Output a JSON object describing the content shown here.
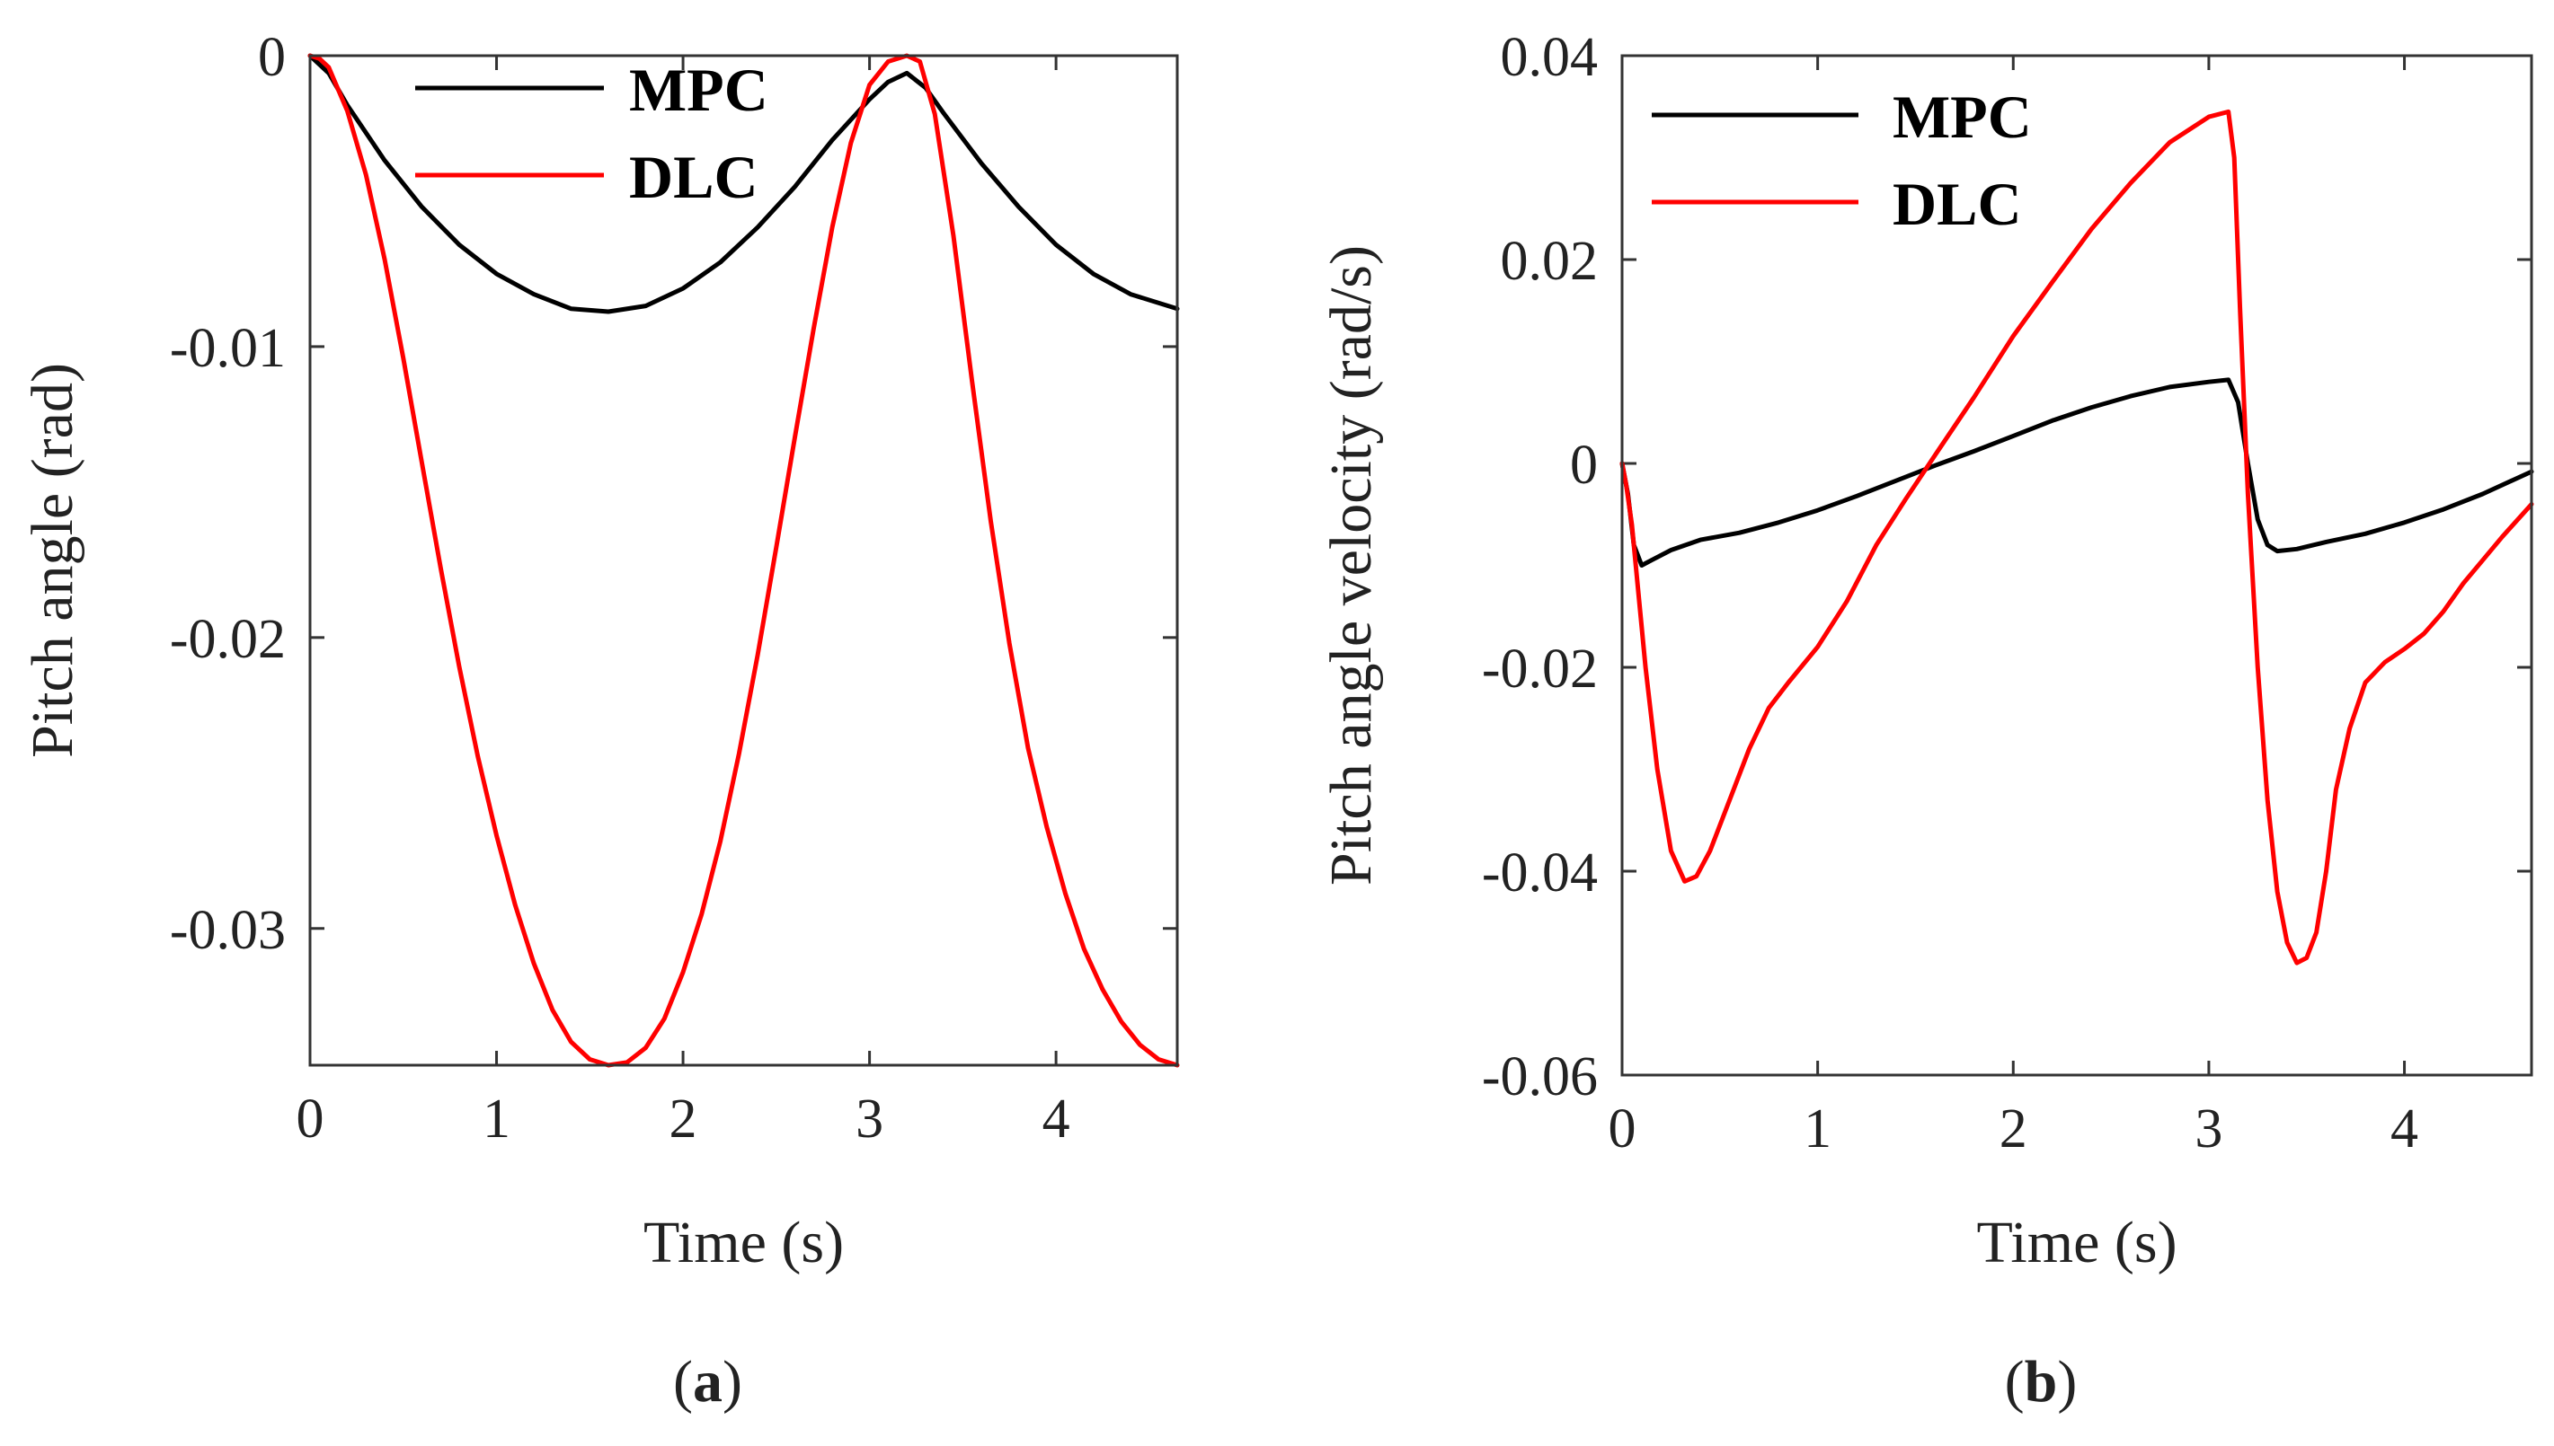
{
  "chart_data": [
    {
      "type": "line",
      "panel": "a",
      "caption": {
        "open": "(",
        "letter": "a",
        "close": ")"
      },
      "xlabel": "Time (s)",
      "ylabel": "Pitch angle (rad)",
      "xlim": [
        0,
        4.65
      ],
      "ylim": [
        -0.0347,
        0
      ],
      "xticks": [
        0,
        1,
        2,
        3,
        4
      ],
      "xtick_labels": [
        "0",
        "1",
        "2",
        "3",
        "4"
      ],
      "yticks": [
        0,
        -0.01,
        -0.02,
        -0.03
      ],
      "ytick_labels": [
        "0",
        "-0.01",
        "-0.02",
        "-0.03"
      ],
      "legend_position": "top",
      "series": [
        {
          "name": "MPC",
          "color": "#000000",
          "x": [
            0,
            0.1,
            0.2,
            0.4,
            0.6,
            0.8,
            1.0,
            1.2,
            1.4,
            1.6,
            1.8,
            2.0,
            2.2,
            2.4,
            2.6,
            2.8,
            3.0,
            3.1,
            3.2,
            3.3,
            3.4,
            3.6,
            3.8,
            4.0,
            4.2,
            4.4,
            4.65
          ],
          "y": [
            0,
            -0.0006,
            -0.0017,
            -0.0036,
            -0.0052,
            -0.0065,
            -0.0075,
            -0.0082,
            -0.0087,
            -0.0088,
            -0.0086,
            -0.008,
            -0.0071,
            -0.0059,
            -0.0045,
            -0.0029,
            -0.0015,
            -0.0009,
            -0.0006,
            -0.0011,
            -0.002,
            -0.0037,
            -0.0052,
            -0.0065,
            -0.0075,
            -0.0082,
            -0.0087
          ]
        },
        {
          "name": "DLC",
          "color": "#ff0000",
          "x": [
            0,
            0.05,
            0.1,
            0.2,
            0.3,
            0.4,
            0.5,
            0.6,
            0.7,
            0.8,
            0.9,
            1.0,
            1.1,
            1.2,
            1.3,
            1.4,
            1.5,
            1.6,
            1.7,
            1.8,
            1.9,
            2.0,
            2.1,
            2.2,
            2.3,
            2.4,
            2.5,
            2.6,
            2.7,
            2.8,
            2.9,
            3.0,
            3.1,
            3.2,
            3.27,
            3.35,
            3.45,
            3.55,
            3.65,
            3.75,
            3.85,
            3.95,
            4.05,
            4.15,
            4.25,
            4.35,
            4.45,
            4.55,
            4.65
          ],
          "y": [
            0,
            -0.0001,
            -0.0004,
            -0.0019,
            -0.0041,
            -0.007,
            -0.0104,
            -0.014,
            -0.0176,
            -0.021,
            -0.0241,
            -0.0268,
            -0.0292,
            -0.0312,
            -0.0328,
            -0.0339,
            -0.0345,
            -0.0347,
            -0.0346,
            -0.0341,
            -0.0331,
            -0.0315,
            -0.0295,
            -0.027,
            -0.024,
            -0.0206,
            -0.0169,
            -0.0131,
            -0.0094,
            -0.0059,
            -0.003,
            -0.001,
            -0.0002,
            0.0,
            -0.0002,
            -0.002,
            -0.0062,
            -0.0112,
            -0.016,
            -0.0202,
            -0.0238,
            -0.0265,
            -0.0288,
            -0.0307,
            -0.0321,
            -0.0332,
            -0.034,
            -0.0345,
            -0.0347
          ]
        }
      ]
    },
    {
      "type": "line",
      "panel": "b",
      "caption": {
        "open": "(",
        "letter": "b",
        "close": ")"
      },
      "xlabel": "Time (s)",
      "ylabel": "Pitch angle velocity (rad/s)",
      "xlim": [
        0,
        4.65
      ],
      "ylim": [
        -0.06,
        0.04
      ],
      "xticks": [
        0,
        1,
        2,
        3,
        4
      ],
      "xtick_labels": [
        "0",
        "1",
        "2",
        "3",
        "4"
      ],
      "yticks": [
        0.04,
        0.02,
        0,
        -0.02,
        -0.04,
        -0.06
      ],
      "ytick_labels": [
        "0.04",
        "0.02",
        "0",
        "-0.02",
        "-0.04",
        "-0.06"
      ],
      "legend_position": "top-left",
      "series": [
        {
          "name": "MPC",
          "color": "#000000",
          "x": [
            0,
            0.03,
            0.06,
            0.1,
            0.15,
            0.25,
            0.4,
            0.6,
            0.8,
            1.0,
            1.2,
            1.4,
            1.6,
            1.8,
            2.0,
            2.2,
            2.4,
            2.6,
            2.8,
            3.0,
            3.1,
            3.15,
            3.2,
            3.25,
            3.3,
            3.35,
            3.45,
            3.6,
            3.8,
            4.0,
            4.2,
            4.4,
            4.65
          ],
          "y": [
            0,
            -0.003,
            -0.008,
            -0.01,
            -0.0095,
            -0.0085,
            -0.0075,
            -0.0068,
            -0.0058,
            -0.0046,
            -0.0032,
            -0.0017,
            -0.0002,
            0.0012,
            0.0027,
            0.0042,
            0.0055,
            0.0066,
            0.0075,
            0.008,
            0.0082,
            0.006,
            0.0,
            -0.0055,
            -0.008,
            -0.0086,
            -0.0084,
            -0.0077,
            -0.0069,
            -0.0058,
            -0.0045,
            -0.003,
            -0.0008
          ]
        },
        {
          "name": "DLC",
          "color": "#ff0000",
          "x": [
            0,
            0.02,
            0.05,
            0.08,
            0.12,
            0.18,
            0.25,
            0.32,
            0.38,
            0.45,
            0.55,
            0.65,
            0.75,
            0.85,
            1.0,
            1.15,
            1.3,
            1.45,
            1.6,
            1.8,
            2.0,
            2.2,
            2.4,
            2.6,
            2.8,
            3.0,
            3.1,
            3.13,
            3.16,
            3.2,
            3.25,
            3.3,
            3.35,
            3.4,
            3.45,
            3.5,
            3.55,
            3.6,
            3.65,
            3.72,
            3.8,
            3.9,
            4.0,
            4.1,
            4.2,
            4.3,
            4.4,
            4.5,
            4.65
          ],
          "y": [
            0,
            -0.002,
            -0.006,
            -0.012,
            -0.02,
            -0.03,
            -0.038,
            -0.041,
            -0.0405,
            -0.038,
            -0.033,
            -0.028,
            -0.024,
            -0.0215,
            -0.018,
            -0.0135,
            -0.008,
            -0.0035,
            0.0008,
            0.0065,
            0.0125,
            0.0178,
            0.023,
            0.0275,
            0.0315,
            0.034,
            0.0345,
            0.03,
            0.015,
            -0.003,
            -0.02,
            -0.033,
            -0.042,
            -0.047,
            -0.049,
            -0.0485,
            -0.046,
            -0.04,
            -0.032,
            -0.026,
            -0.0215,
            -0.0195,
            -0.0182,
            -0.0167,
            -0.0145,
            -0.0118,
            -0.0095,
            -0.0072,
            -0.004
          ]
        }
      ]
    }
  ]
}
